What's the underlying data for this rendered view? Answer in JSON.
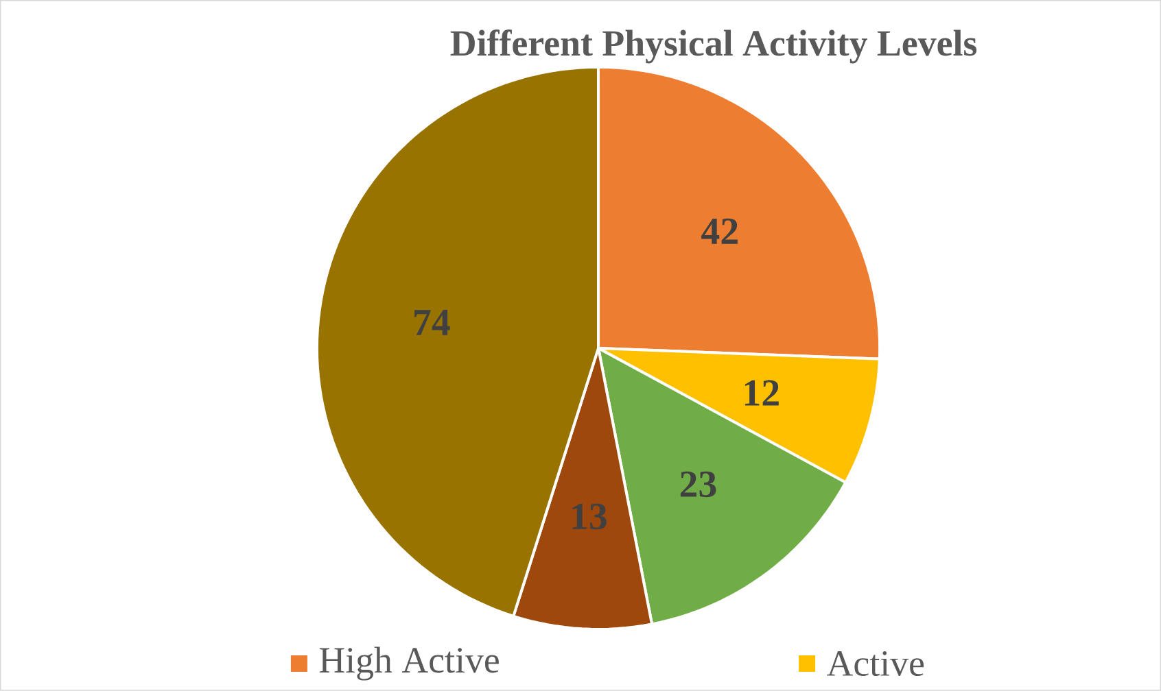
{
  "chart_data": {
    "type": "pie",
    "title": "Different Physical Activity Levels",
    "categories": [
      "High Active",
      "Active",
      null,
      null,
      null
    ],
    "values": [
      42,
      12,
      23,
      13,
      74
    ],
    "colors": [
      "#ed7d31",
      "#ffc000",
      "#70ad47",
      "#9e480e",
      "#997300"
    ],
    "data_labels": true,
    "legend": "bottom"
  }
}
